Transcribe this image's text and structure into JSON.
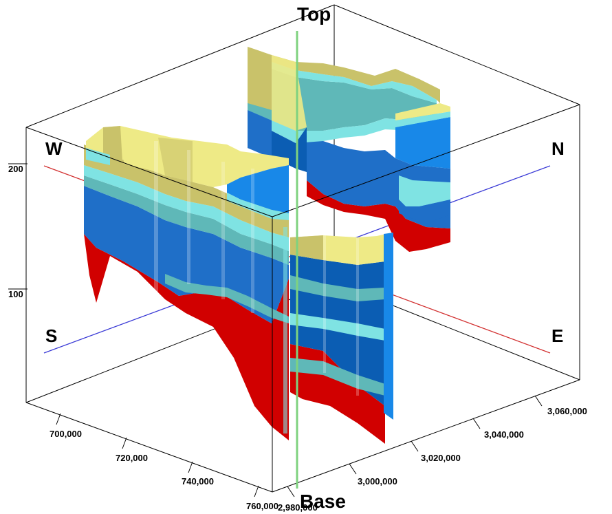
{
  "labels": {
    "top": "Top",
    "base": "Base",
    "west": "W",
    "north": "N",
    "south": "S",
    "east": "E"
  },
  "axes": {
    "z_ticks": [
      "200",
      "100"
    ],
    "x_ticks": [
      "700,000",
      "720,000",
      "740,000",
      "760,000"
    ],
    "y_ticks": [
      "2,980,000",
      "3,000,000",
      "3,020,000",
      "3,040,000",
      "3,060,000"
    ]
  },
  "colors": {
    "box_edge": "#000000",
    "ns_line": "#3a3ad6",
    "we_line": "#d23030",
    "vertical_marker": "#7fd27f",
    "layer_yellow": "#eeea86",
    "layer_olive": "#c9c26a",
    "layer_teal": "#5fb8b8",
    "layer_cyan": "#7fe3e3",
    "layer_blue": "#1f6fc8",
    "layer_dark_blue": "#0b5db3",
    "layer_bright_blue": "#1888e8",
    "layer_red": "#d10000",
    "layer_dark_red": "#b00000"
  }
}
